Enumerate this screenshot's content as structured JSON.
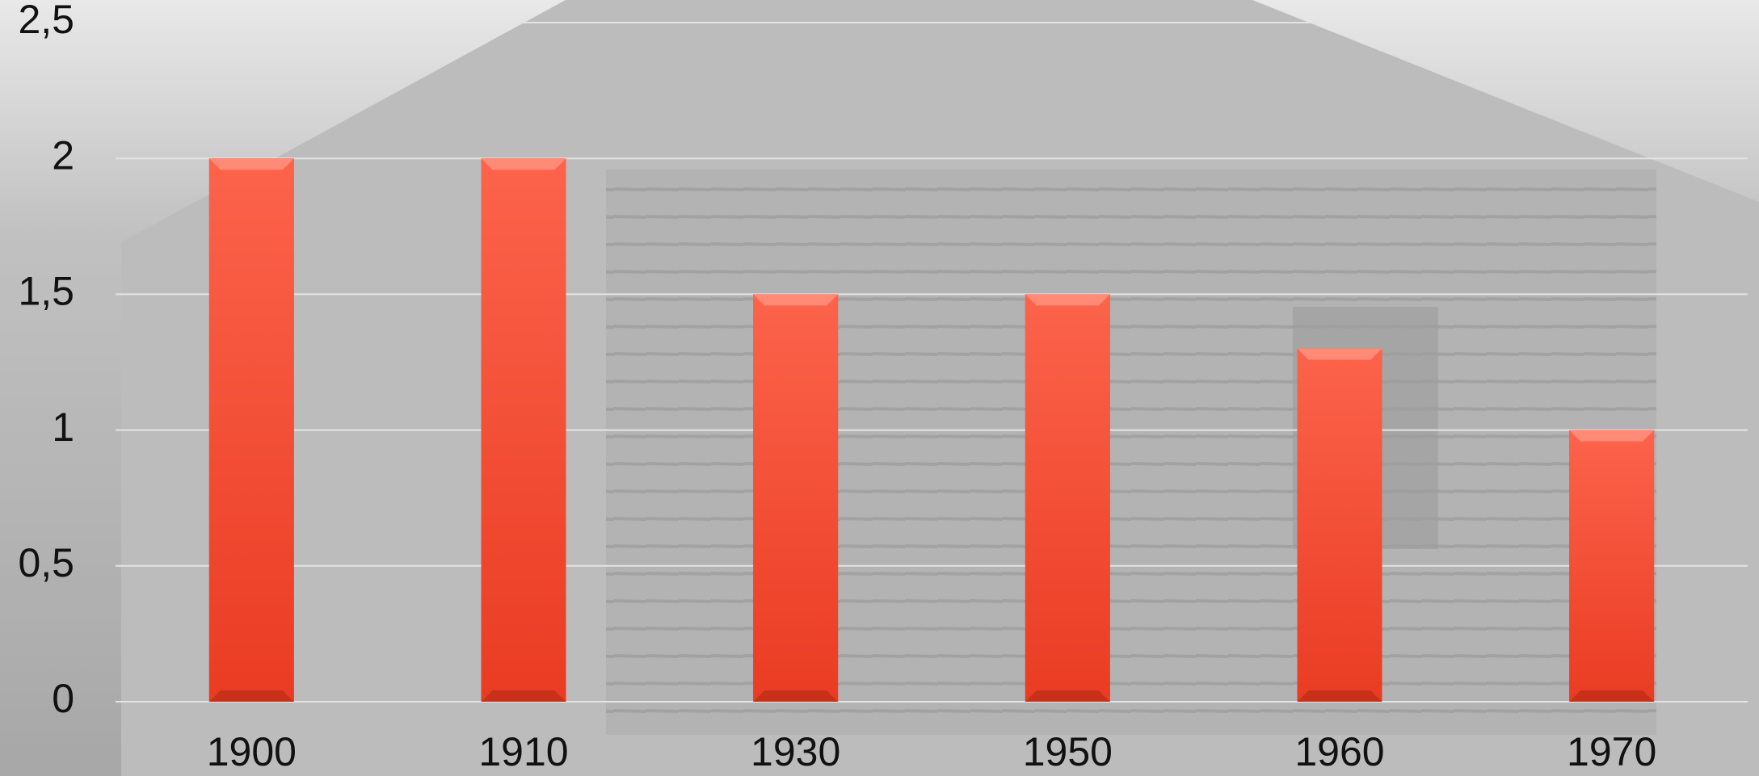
{
  "chart_data": {
    "type": "bar",
    "categories": [
      "1900",
      "1910",
      "1930",
      "1950",
      "1960",
      "1970"
    ],
    "values": [
      2,
      2,
      1.5,
      1.5,
      1.3,
      1
    ],
    "color": "#f04a30",
    "ylim": [
      0,
      2.5
    ],
    "yticks": [
      0,
      {
        "value": 0.5,
        "label": "0,5"
      },
      1,
      {
        "value": 1.5,
        "label": "1,5"
      },
      2,
      {
        "value": 2.5,
        "label": "2,5"
      }
    ],
    "grid": true
  }
}
